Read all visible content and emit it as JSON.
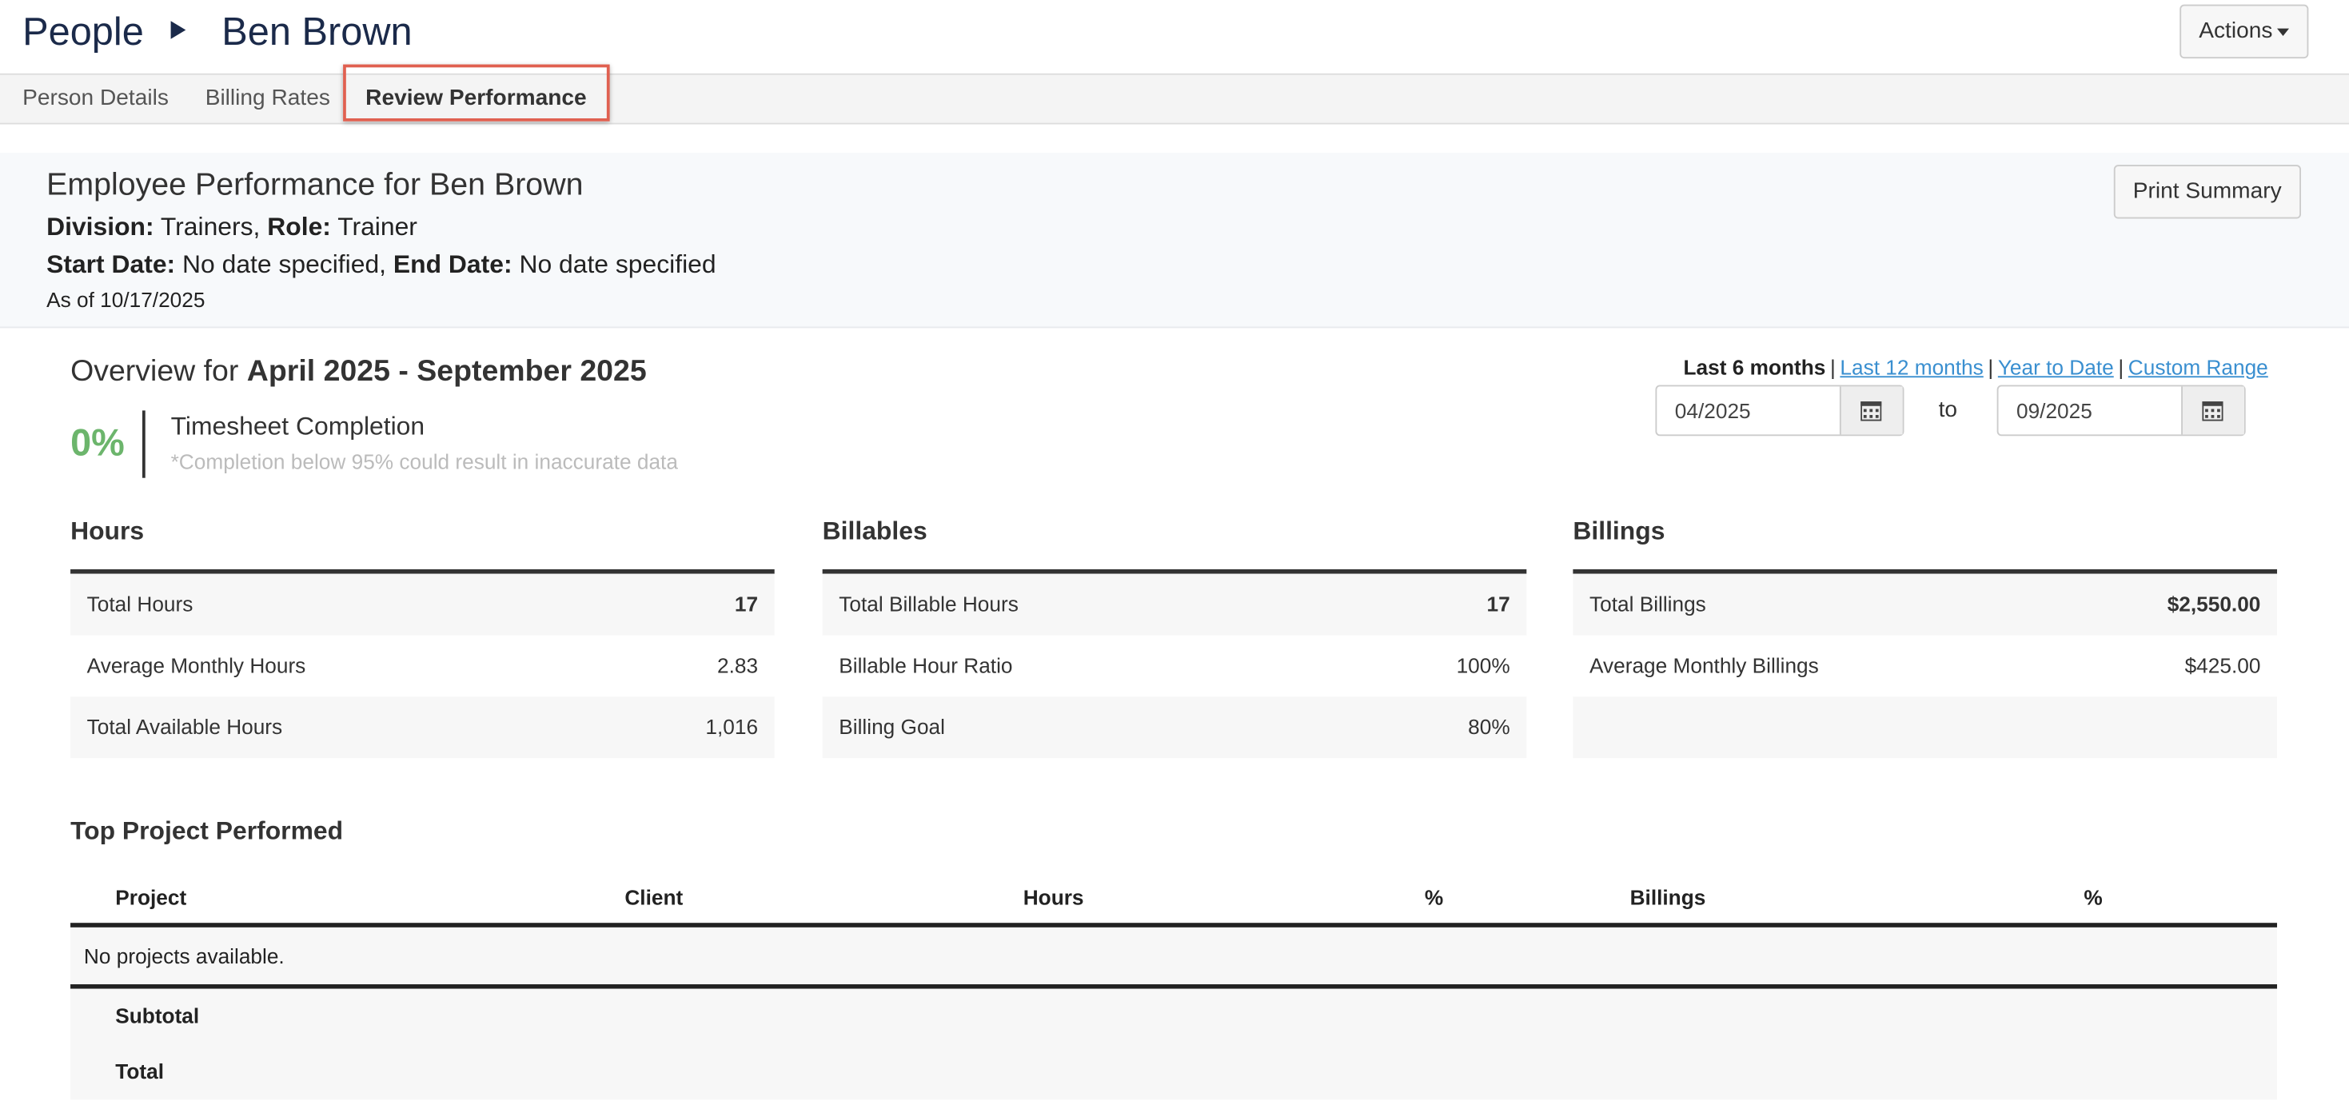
{
  "header": {
    "breadcrumb": "People",
    "title": "Ben Brown",
    "actions": "Actions"
  },
  "tabs": [
    "Person Details",
    "Billing Rates",
    "Review Performance"
  ],
  "summary": {
    "heading": "Employee Performance for Ben Brown",
    "division_label": "Division:",
    "division": "Trainers,",
    "role_label": "Role:",
    "role": "Trainer",
    "start_label": "Start Date:",
    "start": "No date specified,",
    "end_label": "End Date:",
    "end": "No date specified",
    "as_of": "As of 10/17/2025",
    "print": "Print Summary"
  },
  "overview": {
    "prefix": "Overview for",
    "range": "April 2025 - September 2025",
    "completion": "0%",
    "completion_title": "Timesheet Completion",
    "completion_note": "*Completion below 95% could result in inaccurate data",
    "range_options": [
      "Last 6 months",
      "Last 12 months",
      "Year to Date",
      "Custom Range"
    ],
    "from": "04/2025",
    "to_label": "to",
    "to": "09/2025"
  },
  "panels": [
    {
      "title": "Hours",
      "rows": [
        [
          "Total Hours",
          "17"
        ],
        [
          "Average Monthly Hours",
          "2.83"
        ],
        [
          "Total Available Hours",
          "1,016"
        ]
      ]
    },
    {
      "title": "Billables",
      "rows": [
        [
          "Total Billable Hours",
          "17"
        ],
        [
          "Billable Hour Ratio",
          "100%"
        ],
        [
          "Billing Goal",
          "80%"
        ]
      ]
    },
    {
      "title": "Billings",
      "rows": [
        [
          "Total Billings",
          "$2,550.00"
        ],
        [
          "Average Monthly Billings",
          "$425.00"
        ]
      ]
    }
  ],
  "top_projects": {
    "title": "Top Project Performed",
    "columns": [
      "Project",
      "Client",
      "Hours",
      "%",
      "Billings",
      "%"
    ],
    "empty": "No projects available.",
    "subtotal": "Subtotal",
    "total": "Total"
  }
}
